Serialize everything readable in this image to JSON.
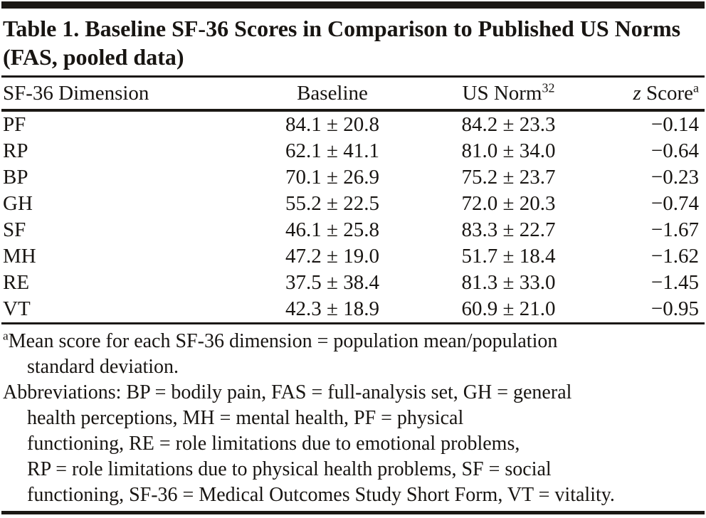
{
  "page": {
    "background": "#ffffff",
    "ink_color": "#181512"
  },
  "table": {
    "title": "Table 1. Baseline SF-36 Scores in Comparison to Published US Norms (FAS, pooled data)",
    "columns": [
      {
        "italic": "",
        "label": "SF-36 Dimension",
        "sup": ""
      },
      {
        "italic": "",
        "label": "Baseline",
        "sup": ""
      },
      {
        "italic": "",
        "label": "US Norm",
        "sup": "32"
      },
      {
        "italic": "z",
        "label": " Score",
        "sup": "a"
      }
    ],
    "rows": [
      {
        "dimension": "PF",
        "baseline": "84.1 ± 20.8",
        "us_norm": "84.2 ± 23.3",
        "z_score": "−0.14"
      },
      {
        "dimension": "RP",
        "baseline": "62.1 ± 41.1",
        "us_norm": "81.0 ± 34.0",
        "z_score": "−0.64"
      },
      {
        "dimension": "BP",
        "baseline": "70.1 ± 26.9",
        "us_norm": "75.2 ± 23.7",
        "z_score": "−0.23"
      },
      {
        "dimension": "GH",
        "baseline": "55.2 ± 22.5",
        "us_norm": "72.0 ± 20.3",
        "z_score": "−0.74"
      },
      {
        "dimension": "SF",
        "baseline": "46.1 ± 25.8",
        "us_norm": "83.3 ± 22.7",
        "z_score": "−1.67"
      },
      {
        "dimension": "MH",
        "baseline": "47.2 ± 19.0",
        "us_norm": "51.7 ± 18.4",
        "z_score": "−1.62"
      },
      {
        "dimension": "RE",
        "baseline": "37.5 ± 38.4",
        "us_norm": "81.3 ± 33.0",
        "z_score": "−1.45"
      },
      {
        "dimension": "VT",
        "baseline": "42.3 ± 18.9",
        "us_norm": "60.9 ± 21.0",
        "z_score": "−0.95"
      }
    ]
  },
  "footnotes": {
    "note_a": {
      "marker": "a",
      "lines": [
        "Mean score for each SF-36 dimension = population mean/population",
        "standard deviation."
      ]
    },
    "abbreviations": {
      "lines": [
        "Abbreviations: BP = bodily pain, FAS = full-analysis set, GH = general",
        "health perceptions, MH = mental health, PF = physical",
        "functioning, RE = role limitations due to emotional problems,",
        "RP = role limitations due to physical health problems, SF = social",
        "functioning, SF-36 = Medical Outcomes Study Short Form, VT = vitality."
      ]
    }
  }
}
